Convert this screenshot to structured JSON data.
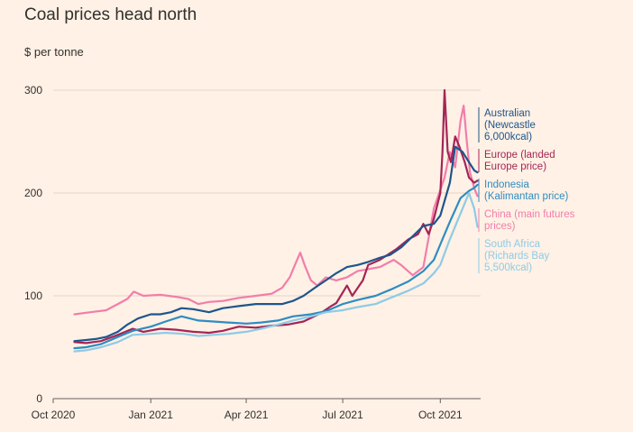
{
  "chart_data": {
    "type": "line",
    "title": "Coal prices head north",
    "ylabel": "$ per tonne",
    "ylim": [
      0,
      300
    ],
    "yticks": [
      0,
      100,
      200,
      300
    ],
    "grid": true,
    "legend_placement": "right",
    "x_range": [
      "2020-10-01",
      "2021-11-08"
    ],
    "xticks": [
      {
        "date": "2020-10-01",
        "label": "Oct 2020"
      },
      {
        "date": "2021-01-01",
        "label": "Jan 2021"
      },
      {
        "date": "2021-04-01",
        "label": "Apr 2021"
      },
      {
        "date": "2021-07-01",
        "label": "Jul 2021"
      },
      {
        "date": "2021-10-01",
        "label": "Oct 2021"
      }
    ],
    "series": [
      {
        "name": "China (main futures prices)",
        "color": "#F27DAA",
        "points": [
          [
            "2020-10-21",
            82
          ],
          [
            "2020-11-05",
            84
          ],
          [
            "2020-11-20",
            86
          ],
          [
            "2020-12-01",
            92
          ],
          [
            "2020-12-10",
            97
          ],
          [
            "2020-12-16",
            104
          ],
          [
            "2020-12-25",
            100
          ],
          [
            "2021-01-10",
            101
          ],
          [
            "2021-01-25",
            99
          ],
          [
            "2021-02-05",
            97
          ],
          [
            "2021-02-15",
            92
          ],
          [
            "2021-02-25",
            94
          ],
          [
            "2021-03-10",
            95
          ],
          [
            "2021-03-25",
            98
          ],
          [
            "2021-04-10",
            100
          ],
          [
            "2021-04-25",
            102
          ],
          [
            "2021-05-05",
            108
          ],
          [
            "2021-05-12",
            118
          ],
          [
            "2021-05-19",
            135
          ],
          [
            "2021-05-22",
            142
          ],
          [
            "2021-05-26",
            130
          ],
          [
            "2021-06-01",
            115
          ],
          [
            "2021-06-07",
            110
          ],
          [
            "2021-06-15",
            118
          ],
          [
            "2021-06-25",
            115
          ],
          [
            "2021-07-05",
            118
          ],
          [
            "2021-07-15",
            124
          ],
          [
            "2021-07-25",
            126
          ],
          [
            "2021-08-05",
            128
          ],
          [
            "2021-08-18",
            135
          ],
          [
            "2021-08-25",
            130
          ],
          [
            "2021-09-05",
            120
          ],
          [
            "2021-09-15",
            128
          ],
          [
            "2021-09-25",
            185
          ],
          [
            "2021-09-30",
            200
          ],
          [
            "2021-10-05",
            215
          ],
          [
            "2021-10-10",
            240
          ],
          [
            "2021-10-15",
            225
          ],
          [
            "2021-10-20",
            270
          ],
          [
            "2021-10-23",
            285
          ],
          [
            "2021-10-26",
            250
          ],
          [
            "2021-10-29",
            220
          ],
          [
            "2021-11-02",
            205
          ],
          [
            "2021-11-05",
            197
          ]
        ]
      },
      {
        "name": "Europe (landed Europe price)",
        "color": "#A42556",
        "points": [
          [
            "2020-10-21",
            55
          ],
          [
            "2020-11-01",
            54
          ],
          [
            "2020-11-15",
            56
          ],
          [
            "2020-12-01",
            62
          ],
          [
            "2020-12-15",
            68
          ],
          [
            "2020-12-25",
            65
          ],
          [
            "2021-01-10",
            68
          ],
          [
            "2021-01-25",
            67
          ],
          [
            "2021-02-10",
            65
          ],
          [
            "2021-02-25",
            64
          ],
          [
            "2021-03-10",
            66
          ],
          [
            "2021-03-25",
            70
          ],
          [
            "2021-04-10",
            69
          ],
          [
            "2021-04-25",
            71
          ],
          [
            "2021-05-10",
            72
          ],
          [
            "2021-05-25",
            75
          ],
          [
            "2021-06-10",
            83
          ],
          [
            "2021-06-20",
            90
          ],
          [
            "2021-06-25",
            93
          ],
          [
            "2021-07-05",
            110
          ],
          [
            "2021-07-10",
            100
          ],
          [
            "2021-07-20",
            115
          ],
          [
            "2021-07-25",
            130
          ],
          [
            "2021-08-05",
            135
          ],
          [
            "2021-08-20",
            145
          ],
          [
            "2021-09-01",
            155
          ],
          [
            "2021-09-10",
            160
          ],
          [
            "2021-09-15",
            170
          ],
          [
            "2021-09-20",
            160
          ],
          [
            "2021-09-25",
            175
          ],
          [
            "2021-10-01",
            200
          ],
          [
            "2021-10-03",
            240
          ],
          [
            "2021-10-05",
            300
          ],
          [
            "2021-10-08",
            240
          ],
          [
            "2021-10-11",
            230
          ],
          [
            "2021-10-15",
            255
          ],
          [
            "2021-10-19",
            245
          ],
          [
            "2021-10-24",
            230
          ],
          [
            "2021-10-28",
            215
          ],
          [
            "2021-11-02",
            210
          ],
          [
            "2021-11-05",
            212
          ]
        ]
      },
      {
        "name": "Australian (Newcastle 6,000kcal)",
        "color": "#1E558C",
        "points": [
          [
            "2020-10-21",
            56
          ],
          [
            "2020-11-01",
            57
          ],
          [
            "2020-11-10",
            58
          ],
          [
            "2020-11-20",
            60
          ],
          [
            "2020-12-01",
            65
          ],
          [
            "2020-12-10",
            72
          ],
          [
            "2020-12-20",
            78
          ],
          [
            "2021-01-01",
            82
          ],
          [
            "2021-01-10",
            82
          ],
          [
            "2021-01-20",
            84
          ],
          [
            "2021-01-30",
            88
          ],
          [
            "2021-02-10",
            87
          ],
          [
            "2021-02-25",
            84
          ],
          [
            "2021-03-10",
            88
          ],
          [
            "2021-03-25",
            90
          ],
          [
            "2021-04-10",
            92
          ],
          [
            "2021-04-25",
            92
          ],
          [
            "2021-05-05",
            92
          ],
          [
            "2021-05-15",
            95
          ],
          [
            "2021-05-25",
            100
          ],
          [
            "2021-06-05",
            108
          ],
          [
            "2021-06-15",
            115
          ],
          [
            "2021-06-25",
            122
          ],
          [
            "2021-07-05",
            128
          ],
          [
            "2021-07-15",
            130
          ],
          [
            "2021-07-25",
            133
          ],
          [
            "2021-08-05",
            137
          ],
          [
            "2021-08-15",
            140
          ],
          [
            "2021-08-25",
            147
          ],
          [
            "2021-09-05",
            158
          ],
          [
            "2021-09-15",
            168
          ],
          [
            "2021-09-25",
            170
          ],
          [
            "2021-10-01",
            178
          ],
          [
            "2021-10-10",
            210
          ],
          [
            "2021-10-15",
            245
          ],
          [
            "2021-10-22",
            240
          ],
          [
            "2021-10-28",
            230
          ],
          [
            "2021-11-02",
            222
          ],
          [
            "2021-11-05",
            220
          ]
        ]
      },
      {
        "name": "Indonesia (Kalimantan price)",
        "color": "#2E8CC2",
        "points": [
          [
            "2020-10-21",
            49
          ],
          [
            "2020-11-01",
            50
          ],
          [
            "2020-11-15",
            53
          ],
          [
            "2020-12-01",
            60
          ],
          [
            "2020-12-15",
            66
          ],
          [
            "2021-01-01",
            70
          ],
          [
            "2021-01-15",
            75
          ],
          [
            "2021-01-30",
            80
          ],
          [
            "2021-02-15",
            76
          ],
          [
            "2021-03-01",
            75
          ],
          [
            "2021-03-15",
            74
          ],
          [
            "2021-04-01",
            73
          ],
          [
            "2021-04-15",
            74
          ],
          [
            "2021-05-01",
            76
          ],
          [
            "2021-05-15",
            80
          ],
          [
            "2021-06-01",
            82
          ],
          [
            "2021-06-15",
            85
          ],
          [
            "2021-07-01",
            92
          ],
          [
            "2021-07-15",
            96
          ],
          [
            "2021-08-01",
            100
          ],
          [
            "2021-08-15",
            106
          ],
          [
            "2021-09-01",
            114
          ],
          [
            "2021-09-15",
            124
          ],
          [
            "2021-09-25",
            135
          ],
          [
            "2021-10-01",
            150
          ],
          [
            "2021-10-10",
            172
          ],
          [
            "2021-10-20",
            195
          ],
          [
            "2021-10-28",
            202
          ],
          [
            "2021-11-02",
            205
          ],
          [
            "2021-11-05",
            208
          ]
        ]
      },
      {
        "name": "South Africa (Richards Bay 5,500kcal)",
        "color": "#8DCBE6",
        "points": [
          [
            "2020-10-21",
            46
          ],
          [
            "2020-11-01",
            47
          ],
          [
            "2020-11-15",
            50
          ],
          [
            "2020-12-01",
            55
          ],
          [
            "2020-12-15",
            62
          ],
          [
            "2021-01-01",
            63
          ],
          [
            "2021-01-15",
            64
          ],
          [
            "2021-02-01",
            63
          ],
          [
            "2021-02-15",
            61
          ],
          [
            "2021-03-01",
            62
          ],
          [
            "2021-03-15",
            63
          ],
          [
            "2021-04-01",
            65
          ],
          [
            "2021-04-15",
            68
          ],
          [
            "2021-05-01",
            72
          ],
          [
            "2021-05-15",
            76
          ],
          [
            "2021-06-01",
            80
          ],
          [
            "2021-06-15",
            84
          ],
          [
            "2021-07-01",
            86
          ],
          [
            "2021-07-15",
            89
          ],
          [
            "2021-08-01",
            92
          ],
          [
            "2021-08-15",
            98
          ],
          [
            "2021-09-01",
            105
          ],
          [
            "2021-09-15",
            112
          ],
          [
            "2021-09-25",
            122
          ],
          [
            "2021-10-01",
            130
          ],
          [
            "2021-10-10",
            155
          ],
          [
            "2021-10-20",
            180
          ],
          [
            "2021-10-28",
            200
          ],
          [
            "2021-11-02",
            185
          ],
          [
            "2021-11-05",
            167
          ]
        ]
      }
    ],
    "labels": [
      {
        "series": "Australian (Newcastle 6,000kcal)",
        "lines": [
          "Australian",
          "(Newcastle",
          "6,000kcal)"
        ],
        "color": "#1E558C"
      },
      {
        "series": "Europe (landed Europe price)",
        "lines": [
          "Europe (landed",
          "Europe price)"
        ],
        "color": "#A42556"
      },
      {
        "series": "Indonesia (Kalimantan price)",
        "lines": [
          "Indonesia",
          "(Kalimantan price)"
        ],
        "color": "#2E8CC2"
      },
      {
        "series": "China (main futures prices)",
        "lines": [
          "China (main futures",
          "prices)"
        ],
        "color": "#F27DAA"
      },
      {
        "series": "South Africa (Richards Bay 5,500kcal)",
        "lines": [
          "South Africa",
          "(Richards Bay",
          "5,500kcal)"
        ],
        "color": "#8DCBE6"
      }
    ]
  }
}
